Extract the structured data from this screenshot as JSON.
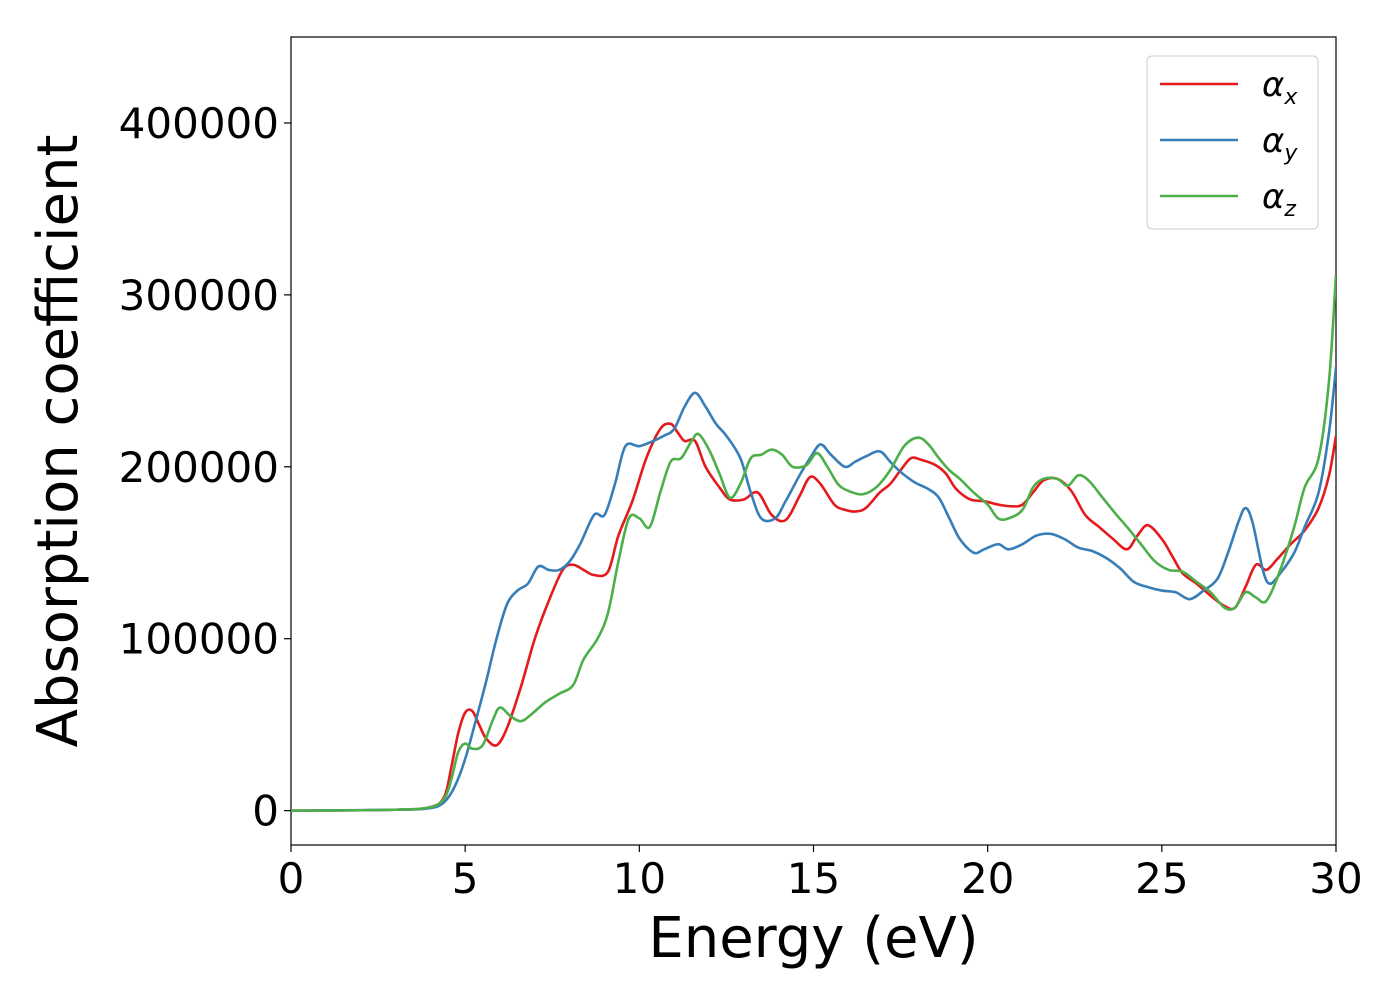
{
  "chart_data": {
    "type": "line",
    "xlabel": "Energy (eV)",
    "ylabel": "Absorption coefficient",
    "xlim": [
      0,
      30
    ],
    "ylim": [
      -20000,
      450000
    ],
    "xticks": [
      0,
      5,
      10,
      15,
      20,
      25,
      30
    ],
    "yticks": [
      0,
      100000,
      200000,
      300000,
      400000
    ],
    "xtick_labels": [
      "0",
      "5",
      "10",
      "15",
      "20",
      "25",
      "30"
    ],
    "ytick_labels": [
      "0",
      "100000",
      "200000",
      "300000",
      "400000"
    ],
    "grid": false,
    "legend": "top-right",
    "series": [
      {
        "name": "αx",
        "symbol": "α",
        "subscript": "x",
        "color": "#e41a1c",
        "points": [
          [
            0,
            0
          ],
          [
            3,
            500
          ],
          [
            4,
            2000
          ],
          [
            4.4,
            8000
          ],
          [
            4.6,
            25000
          ],
          [
            4.8,
            45000
          ],
          [
            5,
            57000
          ],
          [
            5.2,
            58000
          ],
          [
            5.4,
            50000
          ],
          [
            5.6,
            42000
          ],
          [
            5.9,
            38000
          ],
          [
            6.2,
            48000
          ],
          [
            6.6,
            72000
          ],
          [
            7,
            100000
          ],
          [
            7.4,
            122000
          ],
          [
            7.8,
            140000
          ],
          [
            8.1,
            143000
          ],
          [
            8.4,
            140000
          ],
          [
            8.7,
            137000
          ],
          [
            9.1,
            139000
          ],
          [
            9.4,
            160000
          ],
          [
            9.8,
            180000
          ],
          [
            10.2,
            205000
          ],
          [
            10.6,
            222000
          ],
          [
            10.9,
            225000
          ],
          [
            11.1,
            220000
          ],
          [
            11.3,
            215000
          ],
          [
            11.6,
            215000
          ],
          [
            11.9,
            200000
          ],
          [
            12.3,
            188000
          ],
          [
            12.6,
            181000
          ],
          [
            13,
            181000
          ],
          [
            13.4,
            185000
          ],
          [
            13.8,
            172000
          ],
          [
            14.2,
            169000
          ],
          [
            14.6,
            183000
          ],
          [
            14.9,
            194000
          ],
          [
            15.2,
            190000
          ],
          [
            15.6,
            178000
          ],
          [
            15.9,
            175000
          ],
          [
            16.2,
            174000
          ],
          [
            16.5,
            176000
          ],
          [
            16.9,
            185000
          ],
          [
            17.2,
            190000
          ],
          [
            17.5,
            198000
          ],
          [
            17.8,
            205000
          ],
          [
            18.1,
            204000
          ],
          [
            18.5,
            201000
          ],
          [
            18.8,
            196000
          ],
          [
            19.1,
            187000
          ],
          [
            19.5,
            181000
          ],
          [
            19.9,
            180000
          ],
          [
            20.3,
            178000
          ],
          [
            20.7,
            177000
          ],
          [
            21,
            178000
          ],
          [
            21.3,
            185000
          ],
          [
            21.6,
            192000
          ],
          [
            22,
            193000
          ],
          [
            22.4,
            186000
          ],
          [
            22.8,
            172000
          ],
          [
            23.2,
            165000
          ],
          [
            23.6,
            158000
          ],
          [
            24,
            152000
          ],
          [
            24.3,
            160000
          ],
          [
            24.6,
            166000
          ],
          [
            25,
            158000
          ],
          [
            25.3,
            148000
          ],
          [
            25.6,
            138000
          ],
          [
            26,
            132000
          ],
          [
            26.4,
            125000
          ],
          [
            26.8,
            119000
          ],
          [
            27.1,
            118000
          ],
          [
            27.4,
            130000
          ],
          [
            27.7,
            143000
          ],
          [
            28,
            140000
          ],
          [
            28.3,
            146000
          ],
          [
            28.7,
            155000
          ],
          [
            29.1,
            163000
          ],
          [
            29.5,
            176000
          ],
          [
            29.8,
            195000
          ],
          [
            30,
            218000
          ]
        ]
      },
      {
        "name": "αy",
        "symbol": "α",
        "subscript": "y",
        "color": "#377eb8",
        "points": [
          [
            0,
            0
          ],
          [
            3,
            500
          ],
          [
            4,
            1500
          ],
          [
            4.4,
            5000
          ],
          [
            4.7,
            14000
          ],
          [
            5,
            30000
          ],
          [
            5.3,
            52000
          ],
          [
            5.6,
            75000
          ],
          [
            5.9,
            100000
          ],
          [
            6.2,
            120000
          ],
          [
            6.5,
            128000
          ],
          [
            6.8,
            132000
          ],
          [
            7.1,
            142000
          ],
          [
            7.4,
            140000
          ],
          [
            7.7,
            140000
          ],
          [
            8,
            145000
          ],
          [
            8.3,
            155000
          ],
          [
            8.7,
            172000
          ],
          [
            9,
            172000
          ],
          [
            9.3,
            190000
          ],
          [
            9.6,
            212000
          ],
          [
            10,
            212000
          ],
          [
            10.4,
            215000
          ],
          [
            10.7,
            218000
          ],
          [
            11,
            222000
          ],
          [
            11.3,
            235000
          ],
          [
            11.6,
            243000
          ],
          [
            11.9,
            235000
          ],
          [
            12.2,
            225000
          ],
          [
            12.5,
            218000
          ],
          [
            12.9,
            205000
          ],
          [
            13.2,
            185000
          ],
          [
            13.5,
            170000
          ],
          [
            13.9,
            170000
          ],
          [
            14.2,
            180000
          ],
          [
            14.6,
            195000
          ],
          [
            14.9,
            205000
          ],
          [
            15.2,
            213000
          ],
          [
            15.5,
            207000
          ],
          [
            15.9,
            200000
          ],
          [
            16.2,
            203000
          ],
          [
            16.5,
            206000
          ],
          [
            16.9,
            209000
          ],
          [
            17.2,
            203000
          ],
          [
            17.5,
            197000
          ],
          [
            17.9,
            191000
          ],
          [
            18.3,
            187000
          ],
          [
            18.6,
            182000
          ],
          [
            18.9,
            170000
          ],
          [
            19.2,
            158000
          ],
          [
            19.6,
            150000
          ],
          [
            19.9,
            152000
          ],
          [
            20.3,
            155000
          ],
          [
            20.6,
            152000
          ],
          [
            21,
            155000
          ],
          [
            21.4,
            160000
          ],
          [
            21.8,
            161000
          ],
          [
            22.2,
            158000
          ],
          [
            22.6,
            153000
          ],
          [
            23,
            151000
          ],
          [
            23.4,
            147000
          ],
          [
            23.8,
            141000
          ],
          [
            24.2,
            133000
          ],
          [
            24.6,
            130000
          ],
          [
            25,
            128000
          ],
          [
            25.4,
            127000
          ],
          [
            25.8,
            123000
          ],
          [
            26.2,
            128000
          ],
          [
            26.6,
            135000
          ],
          [
            26.9,
            150000
          ],
          [
            27.2,
            168000
          ],
          [
            27.4,
            176000
          ],
          [
            27.6,
            168000
          ],
          [
            27.9,
            140000
          ],
          [
            28.1,
            132000
          ],
          [
            28.4,
            138000
          ],
          [
            28.8,
            150000
          ],
          [
            29.1,
            165000
          ],
          [
            29.5,
            185000
          ],
          [
            29.8,
            220000
          ],
          [
            30,
            258000
          ]
        ]
      },
      {
        "name": "αz",
        "symbol": "α",
        "subscript": "z",
        "color": "#4daf4a",
        "points": [
          [
            0,
            0
          ],
          [
            3,
            500
          ],
          [
            4,
            2000
          ],
          [
            4.4,
            7000
          ],
          [
            4.6,
            18000
          ],
          [
            4.8,
            34000
          ],
          [
            5,
            39000
          ],
          [
            5.2,
            36000
          ],
          [
            5.5,
            38000
          ],
          [
            5.8,
            53000
          ],
          [
            6,
            60000
          ],
          [
            6.3,
            55000
          ],
          [
            6.6,
            52000
          ],
          [
            6.9,
            56000
          ],
          [
            7.3,
            63000
          ],
          [
            7.7,
            68000
          ],
          [
            8.1,
            73000
          ],
          [
            8.4,
            88000
          ],
          [
            8.8,
            100000
          ],
          [
            9.1,
            115000
          ],
          [
            9.4,
            145000
          ],
          [
            9.7,
            170000
          ],
          [
            10,
            170000
          ],
          [
            10.3,
            165000
          ],
          [
            10.6,
            185000
          ],
          [
            10.9,
            203000
          ],
          [
            11.2,
            205000
          ],
          [
            11.5,
            215000
          ],
          [
            11.7,
            219000
          ],
          [
            12,
            210000
          ],
          [
            12.3,
            196000
          ],
          [
            12.6,
            182000
          ],
          [
            12.9,
            190000
          ],
          [
            13.2,
            205000
          ],
          [
            13.5,
            207000
          ],
          [
            13.8,
            210000
          ],
          [
            14.1,
            207000
          ],
          [
            14.4,
            200000
          ],
          [
            14.8,
            201000
          ],
          [
            15.1,
            208000
          ],
          [
            15.4,
            200000
          ],
          [
            15.7,
            190000
          ],
          [
            16,
            186000
          ],
          [
            16.4,
            184000
          ],
          [
            16.8,
            188000
          ],
          [
            17.2,
            198000
          ],
          [
            17.6,
            212000
          ],
          [
            18,
            217000
          ],
          [
            18.3,
            213000
          ],
          [
            18.6,
            205000
          ],
          [
            18.9,
            198000
          ],
          [
            19.2,
            193000
          ],
          [
            19.6,
            185000
          ],
          [
            20,
            178000
          ],
          [
            20.3,
            170000
          ],
          [
            20.6,
            170000
          ],
          [
            21,
            175000
          ],
          [
            21.3,
            188000
          ],
          [
            21.6,
            193000
          ],
          [
            22,
            193000
          ],
          [
            22.3,
            189000
          ],
          [
            22.6,
            195000
          ],
          [
            22.9,
            192000
          ],
          [
            23.3,
            182000
          ],
          [
            23.7,
            172000
          ],
          [
            24,
            165000
          ],
          [
            24.4,
            155000
          ],
          [
            24.8,
            145000
          ],
          [
            25.2,
            140000
          ],
          [
            25.6,
            139000
          ],
          [
            26,
            133000
          ],
          [
            26.4,
            127000
          ],
          [
            26.8,
            118000
          ],
          [
            27.1,
            118000
          ],
          [
            27.4,
            127000
          ],
          [
            27.7,
            124000
          ],
          [
            28,
            122000
          ],
          [
            28.4,
            140000
          ],
          [
            28.8,
            165000
          ],
          [
            29.1,
            188000
          ],
          [
            29.5,
            205000
          ],
          [
            29.8,
            250000
          ],
          [
            30,
            312000
          ]
        ]
      }
    ]
  }
}
